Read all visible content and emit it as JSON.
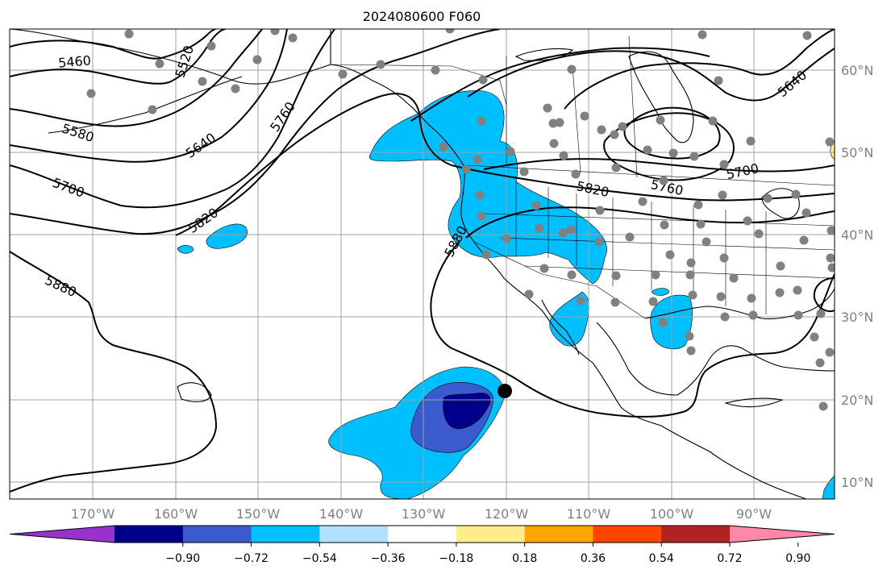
{
  "title": "2024080600 F060",
  "map": {
    "lon_labels": [
      "170°W",
      "160°W",
      "150°W",
      "140°W",
      "130°W",
      "120°W",
      "110°W",
      "100°W",
      "90°W"
    ],
    "lat_labels": [
      "60°N",
      "50°N",
      "40°N",
      "30°N",
      "20°N",
      "10°N"
    ],
    "contour_labels": [
      "5460",
      "5520",
      "5580",
      "5640",
      "5700",
      "5760",
      "5820",
      "5880",
      "5640",
      "5700",
      "5760",
      "5820",
      "5880"
    ],
    "contour_color": "#000000",
    "station_color": "#808080",
    "marker_color": "#000000",
    "coastline_color": "#000000",
    "grid_color": "#a0a0a0"
  },
  "colorbar": {
    "ticks": [
      "−0.90",
      "−0.72",
      "−0.54",
      "−0.36",
      "−0.18",
      "0.18",
      "0.36",
      "0.54",
      "0.72",
      "0.90"
    ],
    "colors": [
      "#9932cc",
      "#00008b",
      "#3a5bcd",
      "#00bfff",
      "#b0e0ff",
      "#ffffff",
      "#ffec8b",
      "#ffa500",
      "#ff4500",
      "#b22222",
      "#ff88aa"
    ]
  }
}
